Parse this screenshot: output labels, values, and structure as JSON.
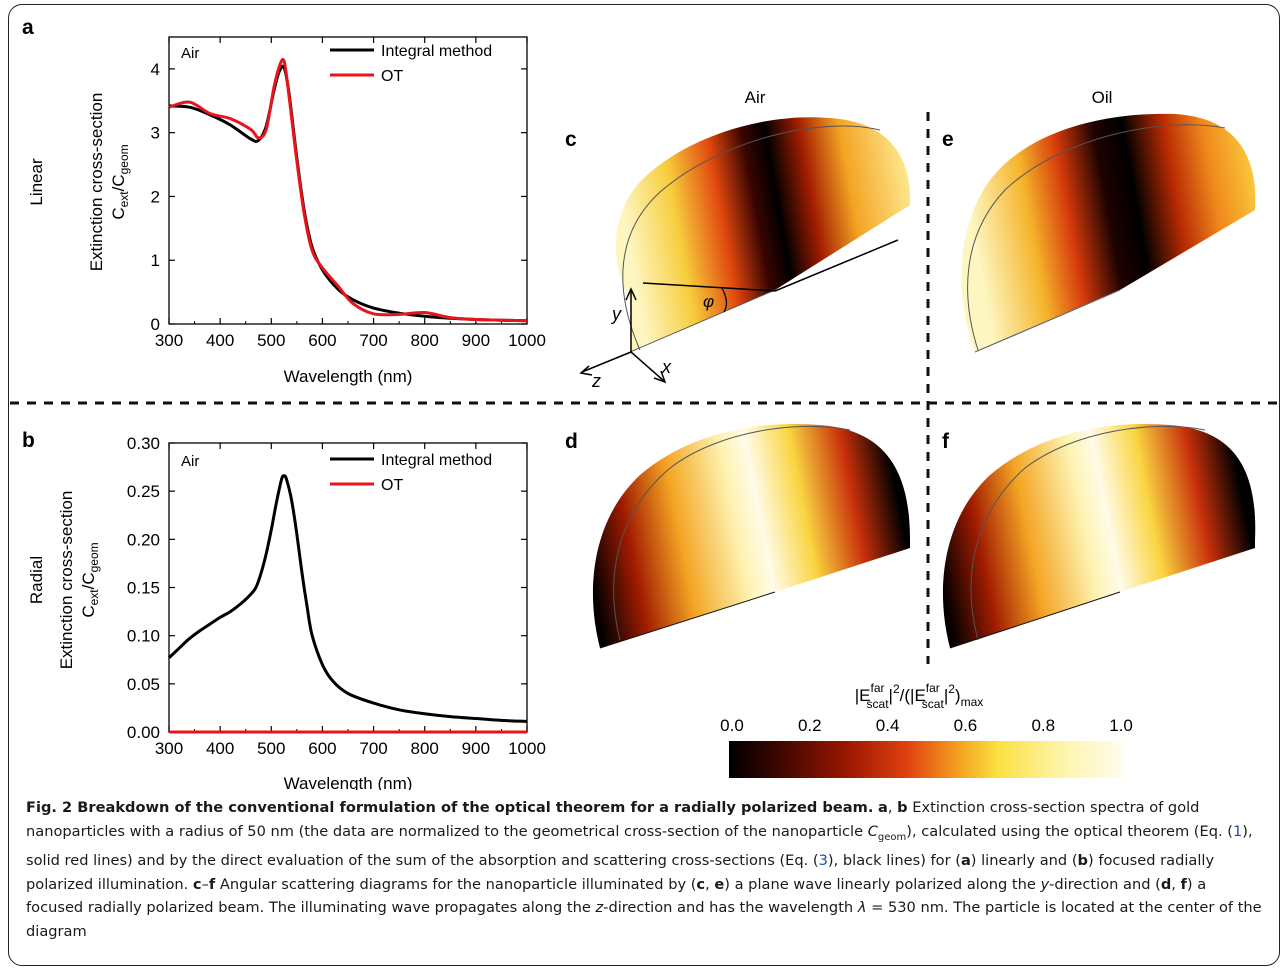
{
  "panels": {
    "a": {
      "letter": "a",
      "row_label": "Linear",
      "medium": "Air"
    },
    "b": {
      "letter": "b",
      "row_label": "Radial",
      "medium": "Air"
    },
    "c": {
      "letter": "c"
    },
    "d": {
      "letter": "d"
    },
    "e": {
      "letter": "e"
    },
    "f": {
      "letter": "f"
    }
  },
  "column_titles": [
    "Air",
    "Oil"
  ],
  "axis_labels": {
    "phi": "φ",
    "y": "y",
    "x": "x",
    "z": "z"
  },
  "legend": [
    "Integral method",
    "OT"
  ],
  "chart_data": [
    {
      "type": "line",
      "panel": "a",
      "xlabel": "Wavelength (nm)",
      "ylabel_line1": "Extinction cross-section",
      "ylabel_line2_main": "C",
      "ylabel_sub1": "ext",
      "ylabel_sep": "/C",
      "ylabel_sub2": "geom",
      "xlim": [
        300,
        1000
      ],
      "ylim": [
        0,
        4.5
      ],
      "xticks": [
        "300",
        "400",
        "500",
        "600",
        "700",
        "800",
        "900",
        "1000"
      ],
      "yticks": [
        "0",
        "1",
        "2",
        "3",
        "4"
      ],
      "x": [
        300,
        340,
        380,
        420,
        460,
        475,
        490,
        505,
        515,
        525,
        535,
        550,
        565,
        580,
        600,
        630,
        660,
        700,
        750,
        800,
        850,
        900,
        950,
        1000
      ],
      "series": [
        {
          "name": "Integral method",
          "color": "#000000",
          "values": [
            3.42,
            3.4,
            3.28,
            3.12,
            2.9,
            2.88,
            3.1,
            3.65,
            3.95,
            4.02,
            3.6,
            2.6,
            1.75,
            1.2,
            0.85,
            0.55,
            0.38,
            0.25,
            0.17,
            0.12,
            0.09,
            0.07,
            0.06,
            0.05
          ]
        },
        {
          "name": "OT",
          "color": "#e8141b",
          "values": [
            3.4,
            3.48,
            3.3,
            3.22,
            3.05,
            2.92,
            3.05,
            3.7,
            4.02,
            4.12,
            3.55,
            2.55,
            1.7,
            1.15,
            0.88,
            0.6,
            0.32,
            0.16,
            0.15,
            0.18,
            0.1,
            0.07,
            0.06,
            0.05
          ]
        }
      ]
    },
    {
      "type": "line",
      "panel": "b",
      "xlabel": "Wavelength (nm)",
      "ylabel_line1": "Extinction cross-section",
      "ylabel_line2_main": "C",
      "ylabel_sub1": "ext",
      "ylabel_sep": "/C",
      "ylabel_sub2": "geom",
      "xlim": [
        300,
        1000
      ],
      "ylim": [
        0,
        0.3
      ],
      "xticks": [
        "300",
        "400",
        "500",
        "600",
        "700",
        "800",
        "900",
        "1000"
      ],
      "yticks": [
        "0.00",
        "0.05",
        "0.10",
        "0.15",
        "0.20",
        "0.25",
        "0.30"
      ],
      "x": [
        300,
        320,
        340,
        360,
        380,
        400,
        420,
        440,
        460,
        470,
        480,
        490,
        500,
        510,
        520,
        525,
        530,
        540,
        550,
        560,
        570,
        580,
        600,
        620,
        650,
        700,
        750,
        800,
        850,
        900,
        950,
        1000
      ],
      "series": [
        {
          "name": "Integral method",
          "color": "#000000",
          "values": [
            0.077,
            0.087,
            0.097,
            0.105,
            0.112,
            0.119,
            0.125,
            0.133,
            0.143,
            0.15,
            0.165,
            0.185,
            0.21,
            0.238,
            0.262,
            0.266,
            0.262,
            0.24,
            0.205,
            0.165,
            0.13,
            0.1,
            0.07,
            0.053,
            0.04,
            0.03,
            0.023,
            0.019,
            0.016,
            0.014,
            0.012,
            0.011
          ]
        },
        {
          "name": "OT",
          "color": "#e8141b",
          "values": [
            0,
            0,
            0,
            0,
            0,
            0,
            0,
            0,
            0,
            0,
            0,
            0,
            0,
            0,
            0,
            0,
            0,
            0,
            0,
            0,
            0,
            0,
            0,
            0,
            0,
            0,
            0,
            0,
            0,
            0,
            0,
            0
          ]
        }
      ]
    }
  ],
  "colorbar": {
    "label_main": "|E",
    "label_sup1": "far",
    "label_sub1": "scat",
    "label_mid": "|",
    "label_sup2": "2",
    "label_mid2": "/(|E",
    "label_sup3": "far",
    "label_sub3": "scat",
    "label_mid3": "|",
    "label_sup4": "2",
    "label_end": ")",
    "label_sub_end": "max",
    "ticks": [
      "0.0",
      "0.2",
      "0.4",
      "0.6",
      "0.8",
      "1.0"
    ],
    "tick_values": [
      0,
      0.2,
      0.4,
      0.6,
      0.8,
      1.0
    ],
    "colors": [
      "#000000",
      "#3b0500",
      "#9a1800",
      "#e04010",
      "#f4a020",
      "#fbe040",
      "#fdf4a8",
      "#fffdf0"
    ]
  },
  "caption": {
    "title": "Fig. 2 Breakdown of the conventional formulation of the optical theorem for a radially polarized beam.",
    "s1_a": "a",
    "s1_sep": ", ",
    "s1_b": "b",
    "s1_text1": " Extinction cross-section spectra of gold nanoparticles with a radius of 50 nm (the data are normalized to the geometrical cross-section of the nanoparticle ",
    "s1_cgeom": "C",
    "s1_cgeom_sub": "geom",
    "s1_text2": "), calculated using the optical theorem (Eq. (",
    "s1_ref1": "1",
    "s1_text3": "), solid red lines) and by the direct evaluation of the sum of the absorption and scattering cross-sections (Eq. (",
    "s1_ref2": "3",
    "s1_text4": "), black lines) for (",
    "s1_a2": "a",
    "s1_text5": ") linearly and (",
    "s1_b2": "b",
    "s1_text6": ") focused radially polarized illumination. ",
    "s2_c": "c",
    "s2_dash": "–",
    "s2_f": "f",
    "s2_text1": " Angular scattering diagrams for the nanoparticle illuminated by (",
    "s2_c2": "c",
    "s2_sep1": ", ",
    "s2_e": "e",
    "s2_text2": ") a plane wave linearly polarized along the ",
    "s2_y": "y",
    "s2_text3": "-direction and (",
    "s2_d": "d",
    "s2_sep2": ", ",
    "s2_f2": "f",
    "s2_text4": ") a focused radially polarized beam. The illuminating wave propagates along the ",
    "s2_z": "z",
    "s2_text5": "-direction and has the wavelength ",
    "s2_lambda": "λ",
    "s2_text6": " = 530 nm. The particle is located at the center of the diagram"
  }
}
